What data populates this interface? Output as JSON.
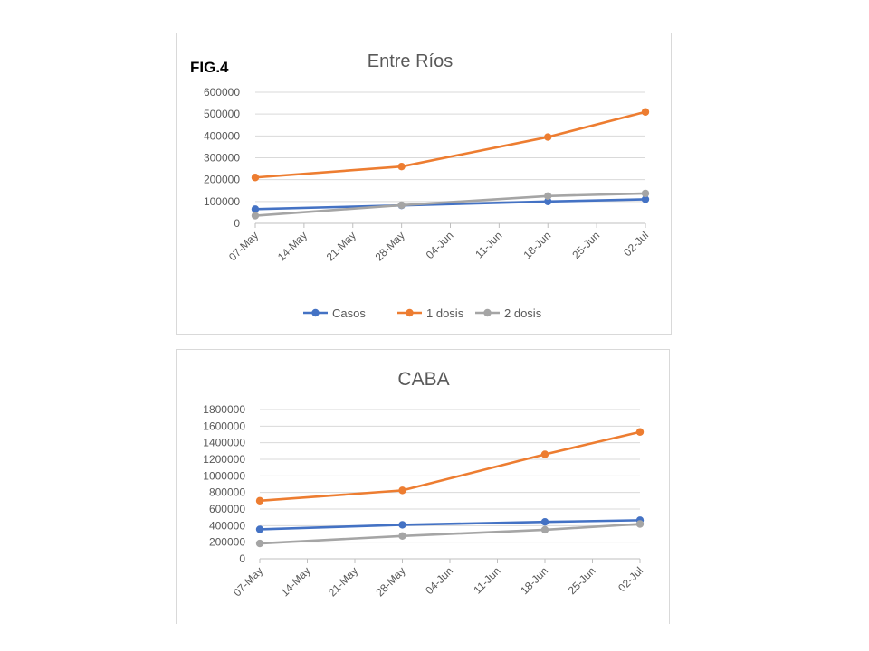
{
  "figure_label": "FIG.4",
  "colors": {
    "casos": "#4472c4",
    "dosis1": "#ed7d31",
    "dosis2": "#a5a5a5",
    "grid": "#d9d9d9",
    "text": "#595959"
  },
  "chart_data": [
    {
      "type": "line",
      "title": "Entre Ríos",
      "x": [
        "07-May",
        "14-May",
        "21-May",
        "28-May",
        "04-Jun",
        "11-Jun",
        "18-Jun",
        "25-Jun",
        "02-Jul"
      ],
      "ylim": [
        0,
        600000
      ],
      "yticks": [
        "0",
        "100000",
        "200000",
        "300000",
        "400000",
        "500000",
        "600000"
      ],
      "grid": true,
      "legend": "bottom",
      "series": [
        {
          "name": "Casos",
          "x": [
            "07-May",
            "28-May",
            "18-Jun",
            "02-Jul"
          ],
          "values": [
            65000,
            82000,
            100000,
            110000
          ]
        },
        {
          "name": "1 dosis",
          "x": [
            "07-May",
            "28-May",
            "18-Jun",
            "02-Jul"
          ],
          "values": [
            210000,
            260000,
            395000,
            510000
          ]
        },
        {
          "name": "2 dosis",
          "x": [
            "07-May",
            "28-May",
            "18-Jun",
            "02-Jul"
          ],
          "values": [
            35000,
            83000,
            125000,
            137000
          ]
        }
      ]
    },
    {
      "type": "line",
      "title": "CABA",
      "x": [
        "07-May",
        "14-May",
        "21-May",
        "28-May",
        "04-Jun",
        "11-Jun",
        "18-Jun",
        "25-Jun",
        "02-Jul"
      ],
      "ylim": [
        0,
        1800000
      ],
      "yticks": [
        "0",
        "200000",
        "400000",
        "600000",
        "800000",
        "1000000",
        "1200000",
        "1400000",
        "1600000",
        "1800000"
      ],
      "grid": true,
      "legend": "none",
      "series": [
        {
          "name": "Casos",
          "x": [
            "07-May",
            "28-May",
            "18-Jun",
            "02-Jul"
          ],
          "values": [
            355000,
            410000,
            445000,
            465000
          ]
        },
        {
          "name": "1 dosis",
          "x": [
            "07-May",
            "28-May",
            "18-Jun",
            "02-Jul"
          ],
          "values": [
            700000,
            825000,
            1260000,
            1530000
          ]
        },
        {
          "name": "2 dosis",
          "x": [
            "07-May",
            "28-May",
            "18-Jun",
            "02-Jul"
          ],
          "values": [
            185000,
            275000,
            350000,
            420000
          ]
        }
      ]
    }
  ]
}
